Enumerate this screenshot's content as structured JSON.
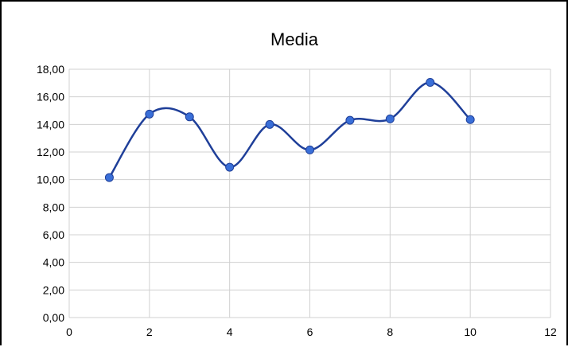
{
  "chart_data": {
    "type": "line",
    "title": "Media",
    "xlabel": "",
    "ylabel": "",
    "xlim": [
      0,
      12
    ],
    "ylim": [
      0,
      18
    ],
    "x_ticks": [
      0,
      2,
      4,
      6,
      8,
      10,
      12
    ],
    "x_tick_labels": [
      "0",
      "2",
      "4",
      "6",
      "8",
      "10",
      "12"
    ],
    "y_ticks": [
      0,
      2,
      4,
      6,
      8,
      10,
      12,
      14,
      16,
      18
    ],
    "y_tick_labels": [
      "0,00",
      "2,00",
      "4,00",
      "6,00",
      "8,00",
      "10,00",
      "12,00",
      "14,00",
      "16,00",
      "18,00"
    ],
    "grid": true,
    "legend": "none",
    "smoothed": true,
    "series": [
      {
        "color": "#1f3f99",
        "marker_color": "#3a6fd8",
        "x": [
          1,
          2,
          3,
          4,
          5,
          6,
          7,
          8,
          9,
          10
        ],
        "y": [
          10.15,
          14.75,
          14.55,
          10.9,
          14.0,
          12.15,
          14.3,
          14.4,
          17.05,
          14.35
        ]
      }
    ]
  }
}
